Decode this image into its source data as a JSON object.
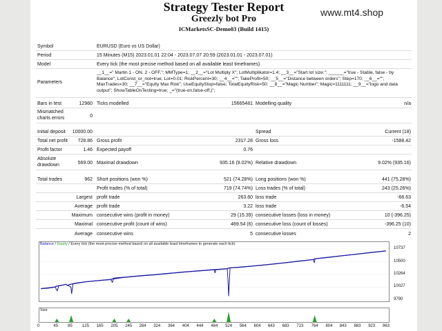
{
  "header": {
    "title": "Strategy Tester Report",
    "subtitle": "Greezly bot Pro",
    "server": "ICMarketsSC-Demo03 (Build 1415)",
    "brand": "www.mt4.shop"
  },
  "info": {
    "symbol_label": "Symbol",
    "symbol_value": "EURUSD (Euro vs US Dollar)",
    "period_label": "Period",
    "period_value": "15 Minutes (M15) 2023.01.01 22:04 - 2023.07.07 20:59 (2023.01.01 - 2023.07.01)",
    "model_label": "Model",
    "model_value": "Every tick (the most precise method based on all available least timeframes)",
    "parameters_label": "Parameters",
    "parameters_value": "__1__=\" Martin 1 - ON. 2 - OFF.\"; MMType=1; __2__=\"Lot Multiply X\"; LotMultiplikator=1.4; __3__=\"Start lot size:\"; ______=\"true - Stable, false - by Balance\"; LotConst_or_not=true; Lot=0.01; RiskPercent=30; __4__=\"\"; TakeProfit=50; __5__=\"Distance between orders\"; Step=170; __6__=\"\"; MaxTrades=30; __7__=\"Equity Max Risk\"; UseEquityStop=false; TotalEquityRisk=50; __8__=\"Magic Number\"; Magic=1111111; __9__=\"logo and data output\"; ShowTableOnTesting=true; _=\"(true-on,false-off,)\";"
  },
  "stats": {
    "bars_label": "Bars in test",
    "bars_value": "12960",
    "ticks_label": "Ticks modelled",
    "ticks_value": "15665481",
    "quality_label": "Modelling quality",
    "quality_value": "n/a",
    "mismatch_label": "Mismatched charts errors",
    "mismatch_value": "0",
    "deposit_label": "Initial deposit",
    "deposit_value": "10000.00",
    "spread_label": "Spread",
    "spread_value": "Current (18)",
    "netprofit_label": "Total net profit",
    "netprofit_value": "728.86",
    "grossprofit_label": "Gross profit",
    "grossprofit_value": "2317.28",
    "grossloss_label": "Gross loss",
    "grossloss_value": "-1588.42",
    "pf_label": "Profit factor",
    "pf_value": "1.46",
    "payoff_label": "Expected payoff",
    "payoff_value": "0.76",
    "absdd_label": "Absolute drawdown",
    "absdd_value": "569.00",
    "maxdd_label": "Maximal drawdown",
    "maxdd_value": "935.16 (9.02%)",
    "reldd_label": "Relative drawdown",
    "reldd_value": "9.02% (935.16)",
    "trades_label": "Total trades",
    "trades_value": "962",
    "short_label": "Short positions (won %)",
    "short_value": "521 (74.28%)",
    "long_label": "Long positions (won %)",
    "long_value": "441 (75.28%)",
    "proftr_label": "Profit trades (% of total)",
    "proftr_value": "719 (74.74%)",
    "losstr_label": "Loss trades (% of total)",
    "losstr_value": "243 (25.26%)",
    "largest_label": "Largest",
    "lg_profit_label": "profit trade",
    "lg_profit_value": "263.60",
    "lg_loss_label": "loss trade",
    "lg_loss_value": "-66.63",
    "average_label": "Average",
    "av_profit_label": "profit trade",
    "av_profit_value": "3.22",
    "av_loss_label": "loss trade",
    "av_loss_value": "-6.54",
    "maximum_label": "Maximum",
    "mx_wins_label": "consecutive wins (profit in money)",
    "mx_wins_value": "29 (15.39)",
    "mx_losses_label": "consecutive losses (loss in money)",
    "mx_losses_value": "10 (-396.25)",
    "maximal_label": "Maximal",
    "ml_wins_label": "consecutive profit (count of wins)",
    "ml_wins_value": "469.54 (6)",
    "ml_losses_label": "consecutive loss (count of losses)",
    "ml_losses_value": "-396.25 (10)",
    "avgc_label": "Average",
    "avgc_wins_label": "consecutive wins",
    "avgc_wins_value": "5",
    "avgc_losses_label": "consecutive losses",
    "avgc_losses_value": "2"
  },
  "chart_data": {
    "type": "line",
    "legend_balance": "Balance",
    "legend_sep": " / ",
    "legend_equity": "Equity",
    "legend_rest": " / Every tick (the most precise method based on all available least timeframes to generate each tick)",
    "volume_label": "Size",
    "y_ticks": [
      "10737",
      "10500",
      "10264",
      "10027",
      "9790"
    ],
    "x_ticks": [
      "0",
      "45",
      "85",
      "125",
      "165",
      "205",
      "245",
      "284",
      "324",
      "364",
      "404",
      "444",
      "484",
      "524",
      "564",
      "604",
      "643",
      "683",
      "723",
      "764",
      "804",
      "843",
      "883",
      "923",
      "963"
    ],
    "ylim": [
      9790,
      10737
    ],
    "xlim": [
      0,
      963
    ],
    "series": [
      {
        "name": "Balance",
        "color": "#1a1aa0",
        "points": [
          [
            0,
            10000
          ],
          [
            20,
            10010
          ],
          [
            40,
            10030
          ],
          [
            45,
            10050
          ],
          [
            60,
            10065
          ],
          [
            70,
            10080
          ],
          [
            75,
            10060
          ],
          [
            80,
            10075
          ],
          [
            88,
            10090
          ],
          [
            100,
            10105
          ],
          [
            130,
            10130
          ],
          [
            160,
            10150
          ],
          [
            195,
            10170
          ],
          [
            200,
            10180
          ],
          [
            205,
            10195
          ],
          [
            210,
            10200
          ],
          [
            240,
            10215
          ],
          [
            280,
            10240
          ],
          [
            320,
            10260
          ],
          [
            360,
            10285
          ],
          [
            400,
            10310
          ],
          [
            440,
            10330
          ],
          [
            480,
            10350
          ],
          [
            520,
            10370
          ],
          [
            525,
            10385
          ],
          [
            560,
            10400
          ],
          [
            600,
            10425
          ],
          [
            640,
            10450
          ],
          [
            680,
            10480
          ],
          [
            720,
            10510
          ],
          [
            760,
            10540
          ],
          [
            765,
            10555
          ],
          [
            800,
            10580
          ],
          [
            840,
            10610
          ],
          [
            880,
            10640
          ],
          [
            920,
            10670
          ],
          [
            963,
            10700
          ]
        ]
      },
      {
        "name": "Equity",
        "color": "#1a1aa0",
        "points": [
          [
            0,
            10000
          ],
          [
            40,
            10030
          ],
          [
            46,
            9960
          ],
          [
            50,
            10050
          ],
          [
            70,
            10080
          ],
          [
            84,
            10030
          ],
          [
            86,
            9905
          ],
          [
            90,
            10090
          ],
          [
            130,
            10130
          ],
          [
            195,
            10170
          ],
          [
            200,
            10120
          ],
          [
            203,
            10180
          ],
          [
            240,
            10215
          ],
          [
            320,
            10260
          ],
          [
            440,
            10330
          ],
          [
            484,
            10350
          ],
          [
            486,
            10290
          ],
          [
            488,
            10350
          ],
          [
            520,
            10370
          ],
          [
            522,
            10180
          ],
          [
            524,
            9860
          ],
          [
            528,
            10385
          ],
          [
            600,
            10425
          ],
          [
            680,
            10480
          ],
          [
            760,
            10540
          ],
          [
            763,
            10480
          ],
          [
            765,
            10555
          ],
          [
            880,
            10640
          ],
          [
            963,
            10700
          ]
        ]
      }
    ],
    "volume": [
      [
        45,
        1
      ],
      [
        85,
        2
      ],
      [
        205,
        1
      ],
      [
        245,
        1
      ],
      [
        484,
        1
      ],
      [
        524,
        3
      ],
      [
        764,
        2
      ]
    ]
  }
}
